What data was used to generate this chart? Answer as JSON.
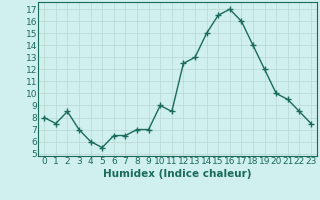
{
  "x": [
    0,
    1,
    2,
    3,
    4,
    5,
    6,
    7,
    8,
    9,
    10,
    11,
    12,
    13,
    14,
    15,
    16,
    17,
    18,
    19,
    20,
    21,
    22,
    23
  ],
  "y": [
    8,
    7.5,
    8.5,
    7,
    6,
    5.5,
    6.5,
    6.5,
    7,
    7,
    9,
    8.5,
    12.5,
    13,
    15,
    16.5,
    17,
    16,
    14,
    12,
    10,
    9.5,
    8.5,
    7.5
  ],
  "line_color": "#1a6b5a",
  "marker": "+",
  "marker_size": 4,
  "bg_color": "#d0efef",
  "grid_color": "#b8d8d0",
  "xlabel": "Humidex (Indice chaleur)",
  "ylabel_ticks": [
    5,
    6,
    7,
    8,
    9,
    10,
    11,
    12,
    13,
    14,
    15,
    16,
    17
  ],
  "ylim": [
    4.8,
    17.6
  ],
  "xlim": [
    -0.5,
    23.5
  ],
  "tick_label_fontsize": 6.5,
  "xlabel_fontsize": 7.5,
  "line_width": 1.0
}
